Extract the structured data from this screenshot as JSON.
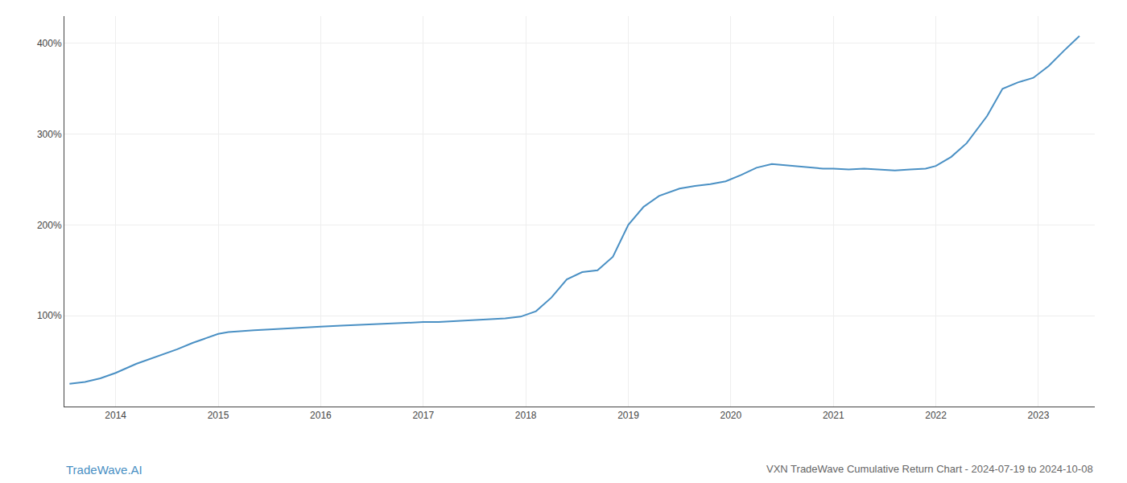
{
  "chart_data": {
    "type": "line",
    "title": "VXN TradeWave Cumulative Return Chart - 2024-07-19 to 2024-10-08",
    "annotations": [
      {
        "text": "TradeWave.AI",
        "color": "#4a90c4"
      }
    ],
    "color": "#4a90c4",
    "x": [
      2013.55,
      2013.7,
      2013.85,
      2014.0,
      2014.2,
      2014.4,
      2014.6,
      2014.75,
      2014.9,
      2015.0,
      2015.1,
      2015.2,
      2015.35,
      2015.5,
      2015.65,
      2015.8,
      2016.0,
      2016.2,
      2016.4,
      2016.6,
      2016.8,
      2017.0,
      2017.15,
      2017.3,
      2017.5,
      2017.65,
      2017.8,
      2017.95,
      2018.1,
      2018.25,
      2018.4,
      2018.55,
      2018.7,
      2018.85,
      2019.0,
      2019.15,
      2019.3,
      2019.5,
      2019.65,
      2019.8,
      2019.95,
      2020.1,
      2020.25,
      2020.4,
      2020.6,
      2020.75,
      2020.9,
      2021.0,
      2021.15,
      2021.3,
      2021.45,
      2021.6,
      2021.75,
      2021.9,
      2022.0,
      2022.15,
      2022.3,
      2022.5,
      2022.65,
      2022.8,
      2022.95,
      2023.1,
      2023.25,
      2023.4
    ],
    "values": [
      25,
      27,
      31,
      37,
      47,
      55,
      63,
      70,
      76,
      80,
      82,
      83,
      84,
      85,
      86,
      87,
      88,
      89,
      90,
      91,
      92,
      93,
      93,
      94,
      95,
      96,
      97,
      99,
      105,
      120,
      140,
      148,
      150,
      165,
      200,
      220,
      232,
      240,
      243,
      245,
      248,
      255,
      263,
      267,
      265,
      263,
      262,
      262,
      261,
      262,
      261,
      260,
      261,
      262,
      265,
      275,
      290,
      320,
      350,
      357,
      362,
      375,
      392,
      408
    ],
    "xlim": [
      2013.5,
      2023.55
    ],
    "ylim": [
      0,
      430
    ],
    "xticks": [
      2014,
      2015,
      2016,
      2017,
      2018,
      2019,
      2020,
      2021,
      2022,
      2023
    ],
    "yticks": [
      {
        "value": 100,
        "label": "100%"
      },
      {
        "value": 200,
        "label": "200%"
      },
      {
        "value": 300,
        "label": "300%"
      },
      {
        "value": 400,
        "label": "400%"
      }
    ],
    "grid": true
  }
}
